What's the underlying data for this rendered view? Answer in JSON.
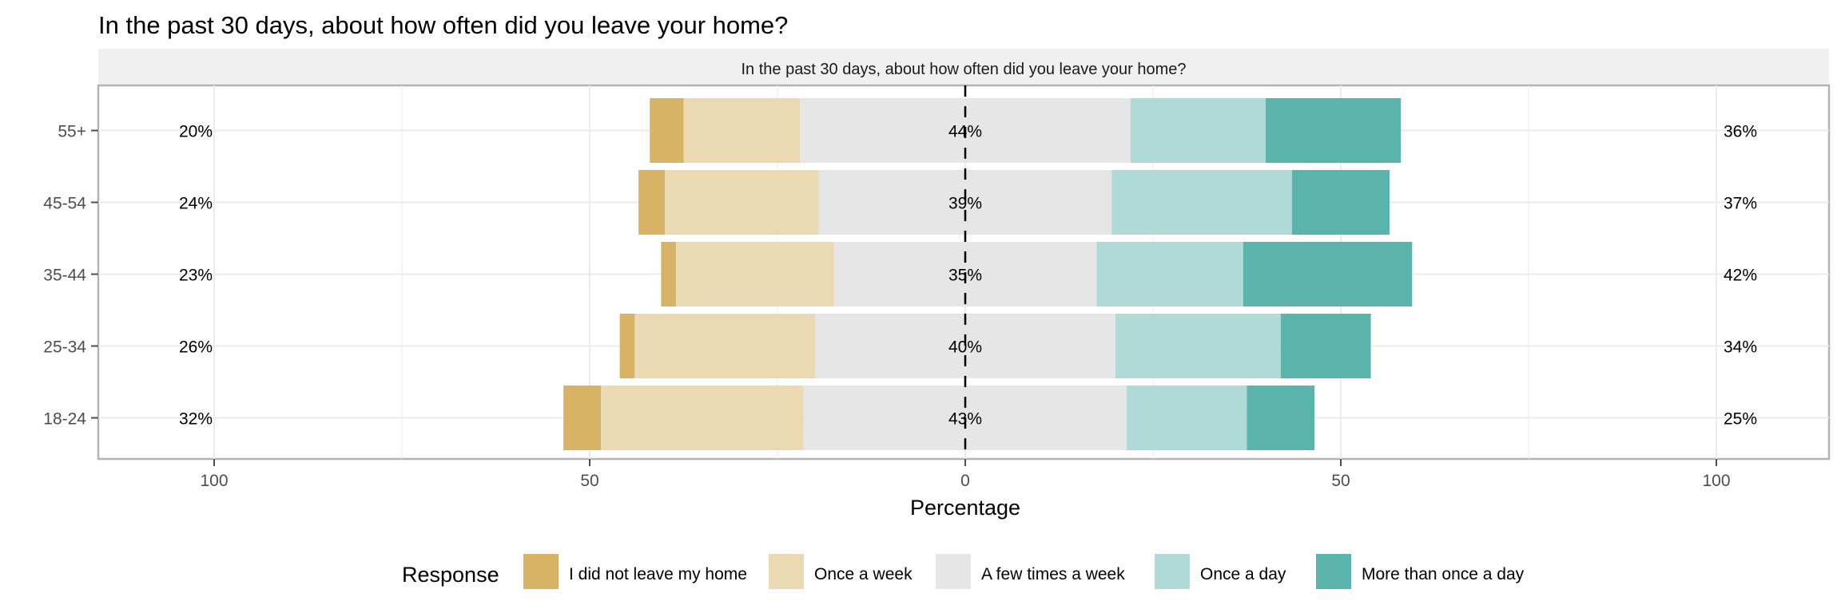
{
  "chart_data": {
    "type": "bar",
    "orientation": "horizontal-diverging",
    "title": "In the past 30 days, about how often did you leave your home?",
    "panel_title": "In the past 30 days, about how often did you leave your home?",
    "xlabel": "Percentage",
    "xlim": [
      -100,
      100
    ],
    "xticks": [
      -100,
      -50,
      0,
      50,
      100
    ],
    "xtick_labels": [
      "100",
      "50",
      "0",
      "50",
      "100"
    ],
    "categories": [
      "55+",
      "45-54",
      "35-44",
      "25-34",
      "18-24"
    ],
    "series": [
      {
        "name": "I did not leave my home",
        "color": "#d9b365",
        "values": [
          4.5,
          3.5,
          2,
          2,
          5
        ]
      },
      {
        "name": "Once a week",
        "color": "#ebd9b2",
        "values": [
          15.5,
          20.5,
          21,
          24,
          27
        ]
      },
      {
        "name": "A few times a week",
        "color": "#e6e6e6",
        "values": [
          44,
          39,
          35,
          40,
          43
        ]
      },
      {
        "name": "Once a day",
        "color": "#afdad7",
        "values": [
          18,
          24,
          19.5,
          22,
          16
        ]
      },
      {
        "name": "More than once a day",
        "color": "#5ab4ac",
        "values": [
          18,
          13,
          22.5,
          12,
          9
        ]
      }
    ],
    "left_labels": [
      "20%",
      "24%",
      "23%",
      "26%",
      "32%"
    ],
    "center_labels": [
      "44%",
      "39%",
      "35%",
      "40%",
      "43%"
    ],
    "right_labels": [
      "36%",
      "37%",
      "42%",
      "34%",
      "25%"
    ],
    "legend": {
      "title": "Response",
      "position": "bottom"
    },
    "grid": true
  }
}
